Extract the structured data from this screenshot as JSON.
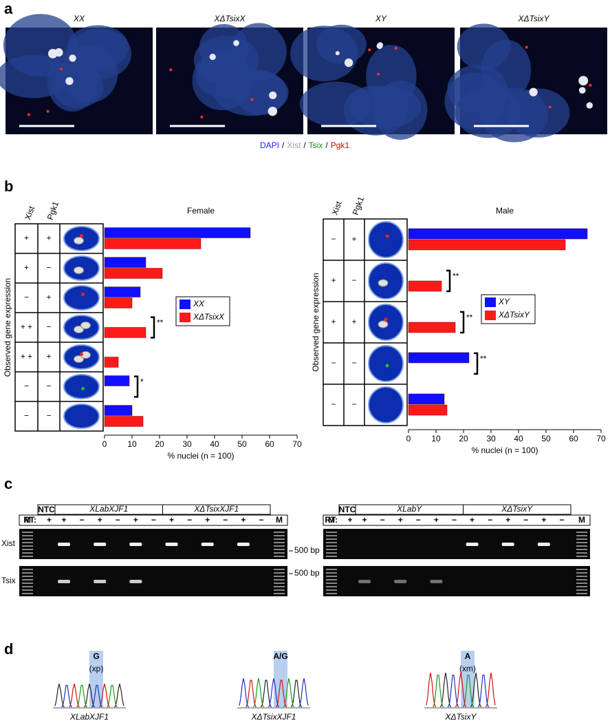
{
  "figure_labels": [
    "a",
    "b",
    "c",
    "d"
  ],
  "panel_a": {
    "images": [
      "XX",
      "XΔTsixX",
      "XY",
      "XΔTsixY"
    ],
    "stain_legend": {
      "items": [
        {
          "text": "DAPI",
          "color": "#1a1aff"
        },
        {
          "text": "Xist",
          "color": "#a0a0a0"
        },
        {
          "text": "Tsix",
          "color": "#1a8a1a"
        },
        {
          "text": "Pgk1",
          "color": "#e00000"
        }
      ],
      "separator": "/"
    }
  },
  "chart_data": [
    {
      "type": "bar",
      "orientation": "horizontal",
      "title": "Female",
      "ylabel": "Observed gene expression",
      "xlabel": "% nuclei (n = 100)",
      "row_headers": [
        "Xist",
        "Pgk1"
      ],
      "rows": [
        [
          "+",
          "+"
        ],
        [
          "+",
          "−"
        ],
        [
          "−",
          "+"
        ],
        [
          "+ +",
          "−"
        ],
        [
          "+ +",
          "+"
        ],
        [
          "−",
          "−"
        ],
        [
          "−",
          "−"
        ]
      ],
      "series": [
        {
          "name": "XX",
          "color": "#1010ff",
          "values": [
            53,
            15,
            13,
            0,
            0,
            9,
            10
          ]
        },
        {
          "name": "XΔTsixX",
          "color": "#ff1a1a",
          "values": [
            35,
            21,
            10,
            15,
            5,
            0,
            14
          ]
        }
      ],
      "annotations": [
        null,
        null,
        null,
        "**",
        null,
        "*",
        null
      ],
      "xlim": [
        0,
        70
      ],
      "xticks": [
        0,
        10,
        20,
        30,
        40,
        50,
        60,
        70
      ]
    },
    {
      "type": "bar",
      "orientation": "horizontal",
      "title": "Male",
      "ylabel": "Observed gene expression",
      "xlabel": "% nuclei (n = 100)",
      "row_headers": [
        "Xist",
        "Pgk1"
      ],
      "rows": [
        [
          "−",
          "+"
        ],
        [
          "+",
          "−"
        ],
        [
          "+",
          "+"
        ],
        [
          "−",
          "−"
        ],
        [
          "−",
          "−"
        ]
      ],
      "series": [
        {
          "name": "XY",
          "color": "#1010ff",
          "values": [
            65,
            0,
            0,
            22,
            13
          ]
        },
        {
          "name": "XΔTsixY",
          "color": "#ff1a1a",
          "values": [
            57,
            12,
            17,
            0,
            14
          ]
        }
      ],
      "annotations": [
        null,
        "**",
        "**",
        "**",
        null
      ],
      "xlim": [
        0,
        70
      ],
      "xticks": [
        0,
        10,
        20,
        30,
        40,
        50,
        60,
        70
      ]
    }
  ],
  "panel_c": {
    "row_labels": [
      "Xist",
      "Tsix"
    ],
    "marker_label": "M",
    "rt_label": "RT:",
    "ntc_label": "NTC",
    "size_marker": "500 bp",
    "gels": [
      {
        "groups": [
          "XLabXJF1",
          "XΔTsixXJF1"
        ],
        "lanes": [
          "+",
          "+",
          "−",
          "+",
          "−",
          "+",
          "−",
          "+",
          "−",
          "+",
          "−",
          "+",
          "−"
        ]
      },
      {
        "groups": [
          "XLabY",
          "XΔTsixY"
        ],
        "lanes": [
          "+",
          "+",
          "−",
          "+",
          "−",
          "+",
          "−",
          "+",
          "−",
          "+",
          "−",
          "+",
          "−"
        ]
      }
    ]
  },
  "panel_d": {
    "traces": [
      {
        "base": "G",
        "allele": "(xp)",
        "genotype": "XLabXJF1"
      },
      {
        "base": "A/G",
        "genotype": "XΔTsixXJF1"
      },
      {
        "base": "A",
        "allele": "(xm)",
        "genotype": "XΔTsixY"
      }
    ]
  }
}
